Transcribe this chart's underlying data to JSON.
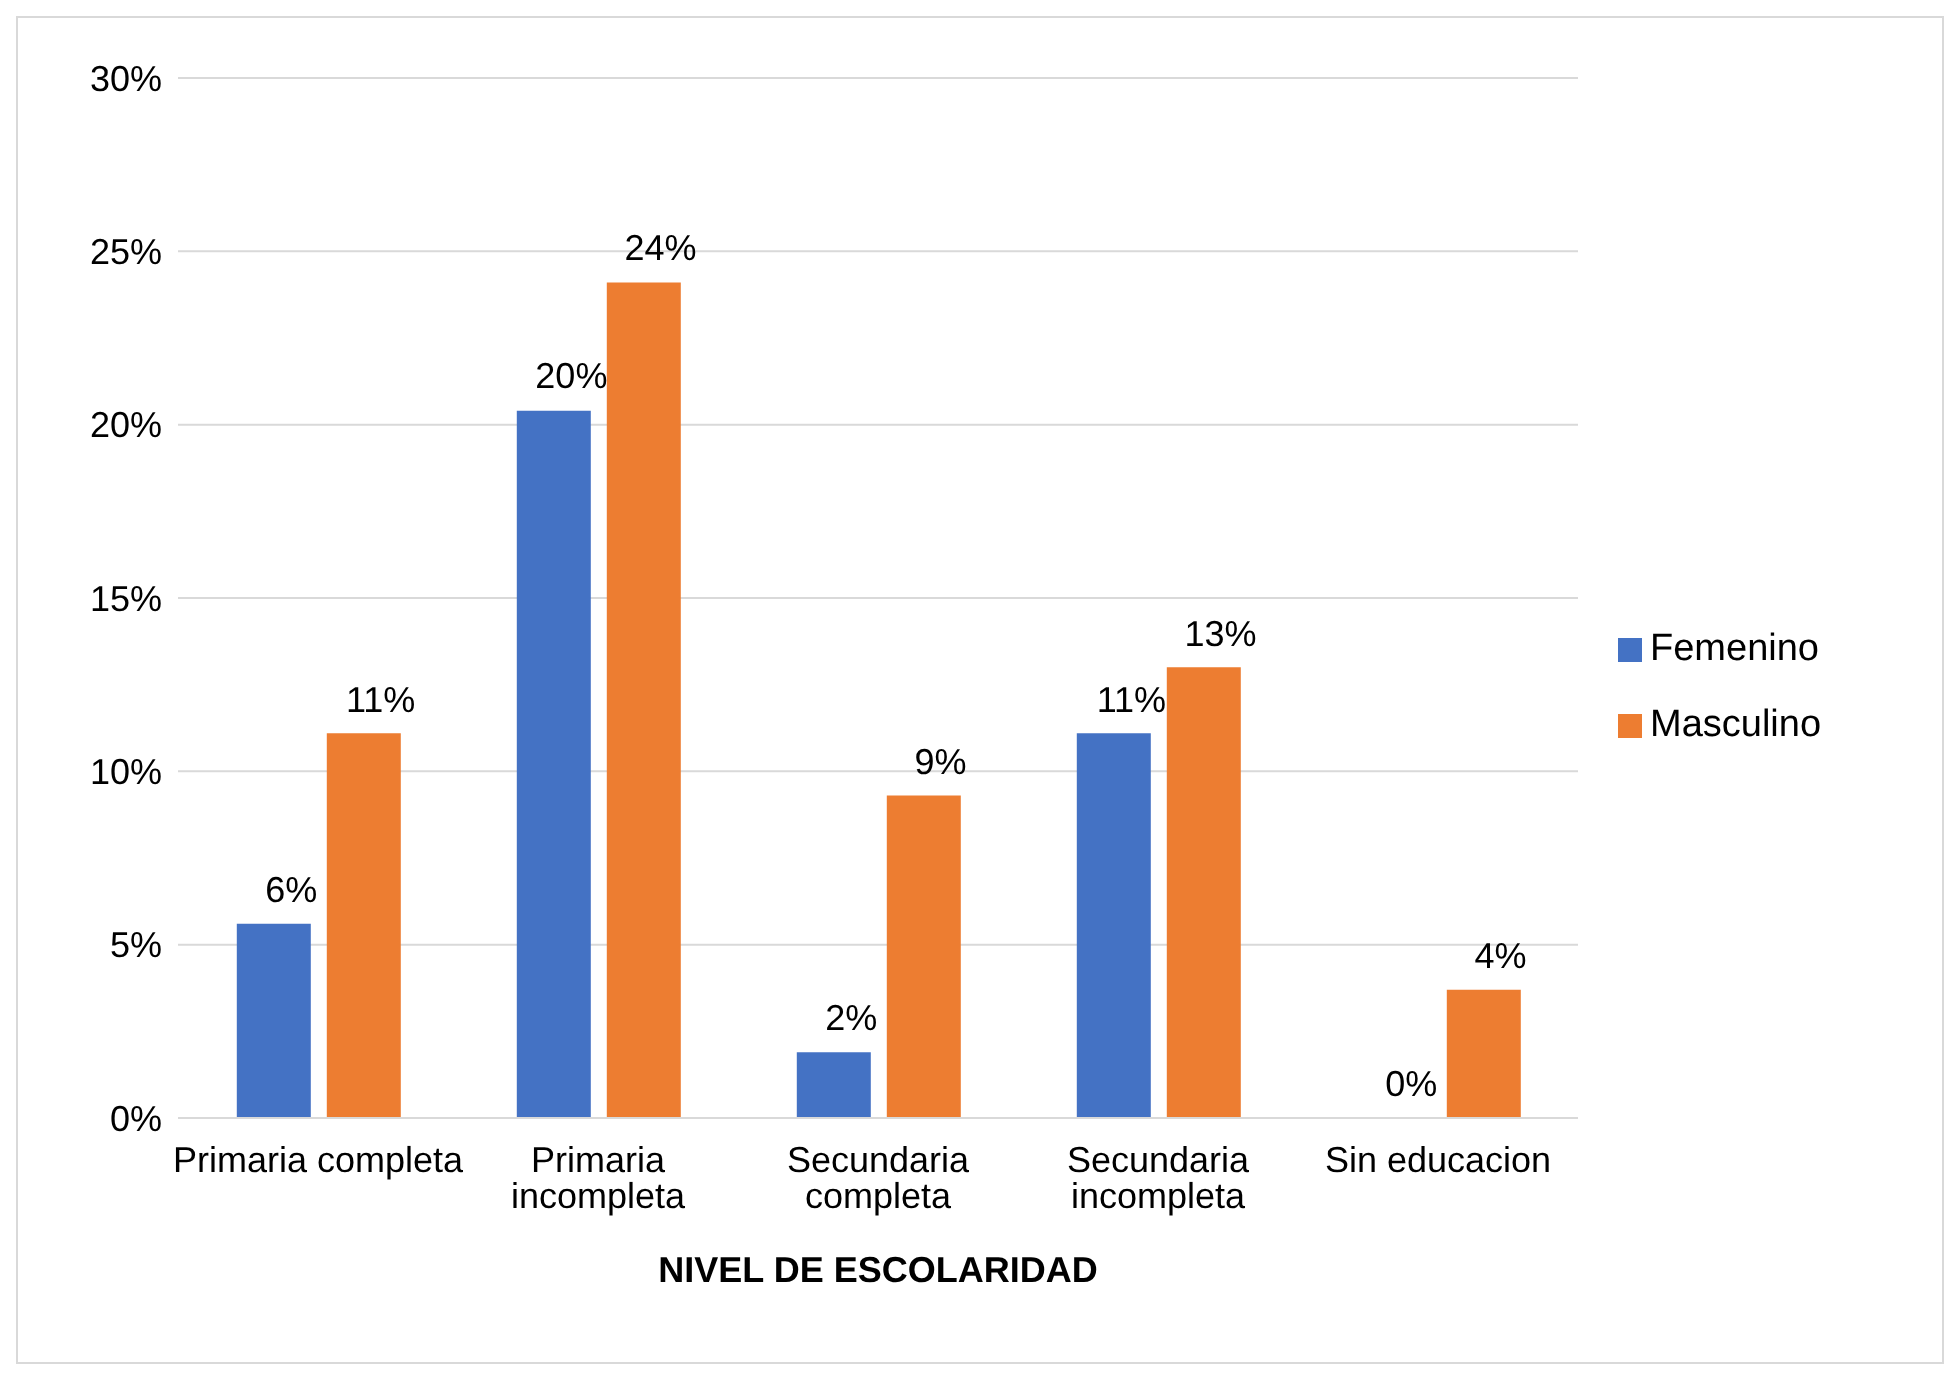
{
  "chart_data": {
    "type": "bar",
    "xlabel": "NIVEL DE ESCOLARIDAD",
    "categories": [
      "Primaria completa",
      "Primaria incompleta",
      "Secundaria completa",
      "Secundaria incompleta",
      "Sin educacion"
    ],
    "series": [
      {
        "name": "Femenino",
        "color": "#4472c4",
        "values": [
          5.6,
          20.4,
          1.9,
          11.1,
          0
        ],
        "value_labels": [
          "6%",
          "20%",
          "2%",
          "11%",
          "0%"
        ]
      },
      {
        "name": "Masculino",
        "color": "#ed7d31",
        "values": [
          11.1,
          24.1,
          9.3,
          13.0,
          3.7
        ],
        "value_labels": [
          "11%",
          "24%",
          "9%",
          "13%",
          "4%"
        ]
      }
    ],
    "ylim": [
      0,
      30
    ],
    "yticks": [
      {
        "value": 0,
        "label": "0%"
      },
      {
        "value": 5,
        "label": "5%"
      },
      {
        "value": 10,
        "label": "10%"
      },
      {
        "value": 15,
        "label": "15%"
      },
      {
        "value": 20,
        "label": "20%"
      },
      {
        "value": 25,
        "label": "25%"
      },
      {
        "value": 30,
        "label": "30%"
      }
    ],
    "grid": "y",
    "legend": "right"
  }
}
